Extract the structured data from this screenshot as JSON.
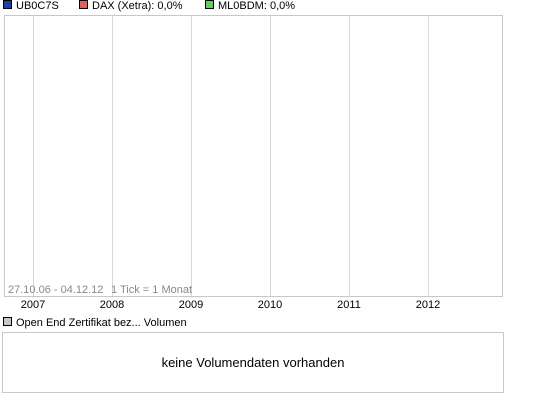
{
  "chart_data": {
    "type": "line",
    "legend": [
      {
        "name": "UB0C7S",
        "color": "#2040a0"
      },
      {
        "name": "DAX (Xetra): 0,0%",
        "color": "#e06060"
      },
      {
        "name": "ML0BDM: 0,0%",
        "color": "#60d060"
      }
    ],
    "x_ticks": [
      "2007",
      "2008",
      "2009",
      "2010",
      "2011",
      "2012"
    ],
    "date_range_label": "27.10.06 - 04.12.12",
    "tick_note": "1 Tick = 1 Monat",
    "series": [],
    "grid": true
  },
  "volume": {
    "legend_label": "Open End Zertifikat bez... Volumen",
    "legend_color": "#c8c8c8",
    "empty_message": "keine Volumendaten vorhanden"
  },
  "colors": {
    "grid": "#d8d8d8",
    "frame": "#c8c8c8",
    "caption": "#888888"
  }
}
